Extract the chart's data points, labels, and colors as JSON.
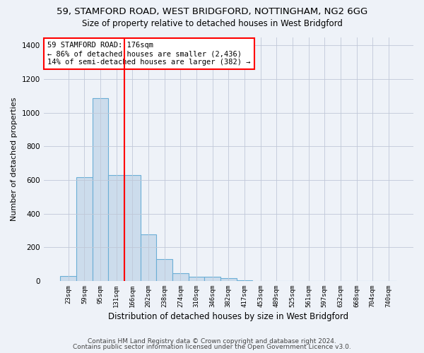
{
  "title1": "59, STAMFORD ROAD, WEST BRIDGFORD, NOTTINGHAM, NG2 6GG",
  "title2": "Size of property relative to detached houses in West Bridgford",
  "xlabel": "Distribution of detached houses by size in West Bridgford",
  "ylabel": "Number of detached properties",
  "categories": [
    "23sqm",
    "59sqm",
    "95sqm",
    "131sqm",
    "166sqm",
    "202sqm",
    "238sqm",
    "274sqm",
    "310sqm",
    "346sqm",
    "382sqm",
    "417sqm",
    "453sqm",
    "489sqm",
    "525sqm",
    "561sqm",
    "597sqm",
    "632sqm",
    "668sqm",
    "704sqm",
    "740sqm"
  ],
  "values": [
    30,
    615,
    1085,
    630,
    630,
    275,
    130,
    45,
    25,
    25,
    15,
    5,
    0,
    0,
    0,
    0,
    0,
    0,
    0,
    0,
    0
  ],
  "bar_color": "#ccdcec",
  "bar_edge_color": "#6baed6",
  "annotation_line1": "59 STAMFORD ROAD: 176sqm",
  "annotation_line2": "← 86% of detached houses are smaller (2,436)",
  "annotation_line3": "14% of semi-detached houses are larger (382) →",
  "annotation_box_color": "white",
  "annotation_box_edge_color": "red",
  "red_line_after_index": 3,
  "marker_color": "red",
  "ylim": [
    0,
    1450
  ],
  "yticks": [
    0,
    200,
    400,
    600,
    800,
    1000,
    1200,
    1400
  ],
  "footer1": "Contains HM Land Registry data © Crown copyright and database right 2024.",
  "footer2": "Contains public sector information licensed under the Open Government Licence v3.0.",
  "bg_color": "#eef2f8",
  "plot_bg_color": "#eef2f8",
  "title1_fontsize": 9.5,
  "title2_fontsize": 8.5,
  "annotation_fontsize": 7.5,
  "footer_fontsize": 6.5,
  "ylabel_fontsize": 8,
  "xlabel_fontsize": 8.5
}
